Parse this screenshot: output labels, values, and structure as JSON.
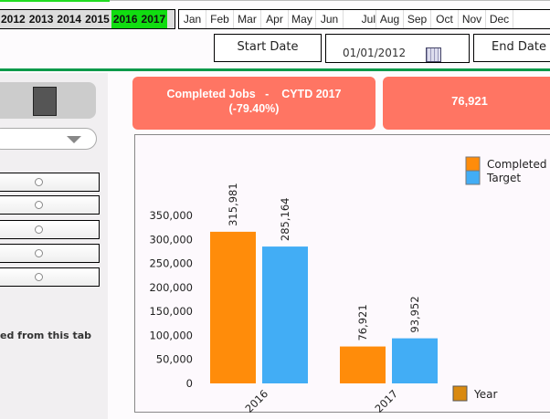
{
  "years": [
    {
      "label": "2012",
      "selected": false
    },
    {
      "label": "2013",
      "selected": false
    },
    {
      "label": "2014",
      "selected": false
    },
    {
      "label": "2015",
      "selected": false
    },
    {
      "label": "2016",
      "selected": true
    },
    {
      "label": "2017",
      "selected": true
    }
  ],
  "months": [
    "Jan",
    "Feb",
    "Mar",
    "Apr",
    "May",
    "Jun",
    "Jul",
    "Aug",
    "Sep",
    "Oct",
    "Nov",
    "Dec"
  ],
  "start_date_label": "Start Date",
  "start_date_value": "01/01/2012",
  "end_date_label": "End Date",
  "left_panel": {
    "note": "ed from this tab"
  },
  "kpi": {
    "title": "Completed Jobs   -    CYTD 2017",
    "change": "(-79.40%)",
    "value": "76,921"
  },
  "colors": {
    "completed": "#ff8c0a",
    "target": "#42adf5",
    "kpi": "#ff7563",
    "selected_year": "#11dd11"
  },
  "chart_data": {
    "type": "bar",
    "categories": [
      "2016",
      "2017"
    ],
    "series": [
      {
        "name": "Completed",
        "values": [
          315981,
          76921
        ],
        "labels": [
          "315,981",
          "76,921"
        ]
      },
      {
        "name": "Target",
        "values": [
          285164,
          93952
        ],
        "labels": [
          "285,164",
          "93,952"
        ]
      }
    ],
    "yticks": [
      "0",
      "50,000",
      "100,000",
      "150,000",
      "200,000",
      "250,000",
      "300,000",
      "350,000"
    ],
    "ylim": [
      0,
      350000
    ],
    "xlabel": "Year",
    "legend_placement": "top-right"
  }
}
